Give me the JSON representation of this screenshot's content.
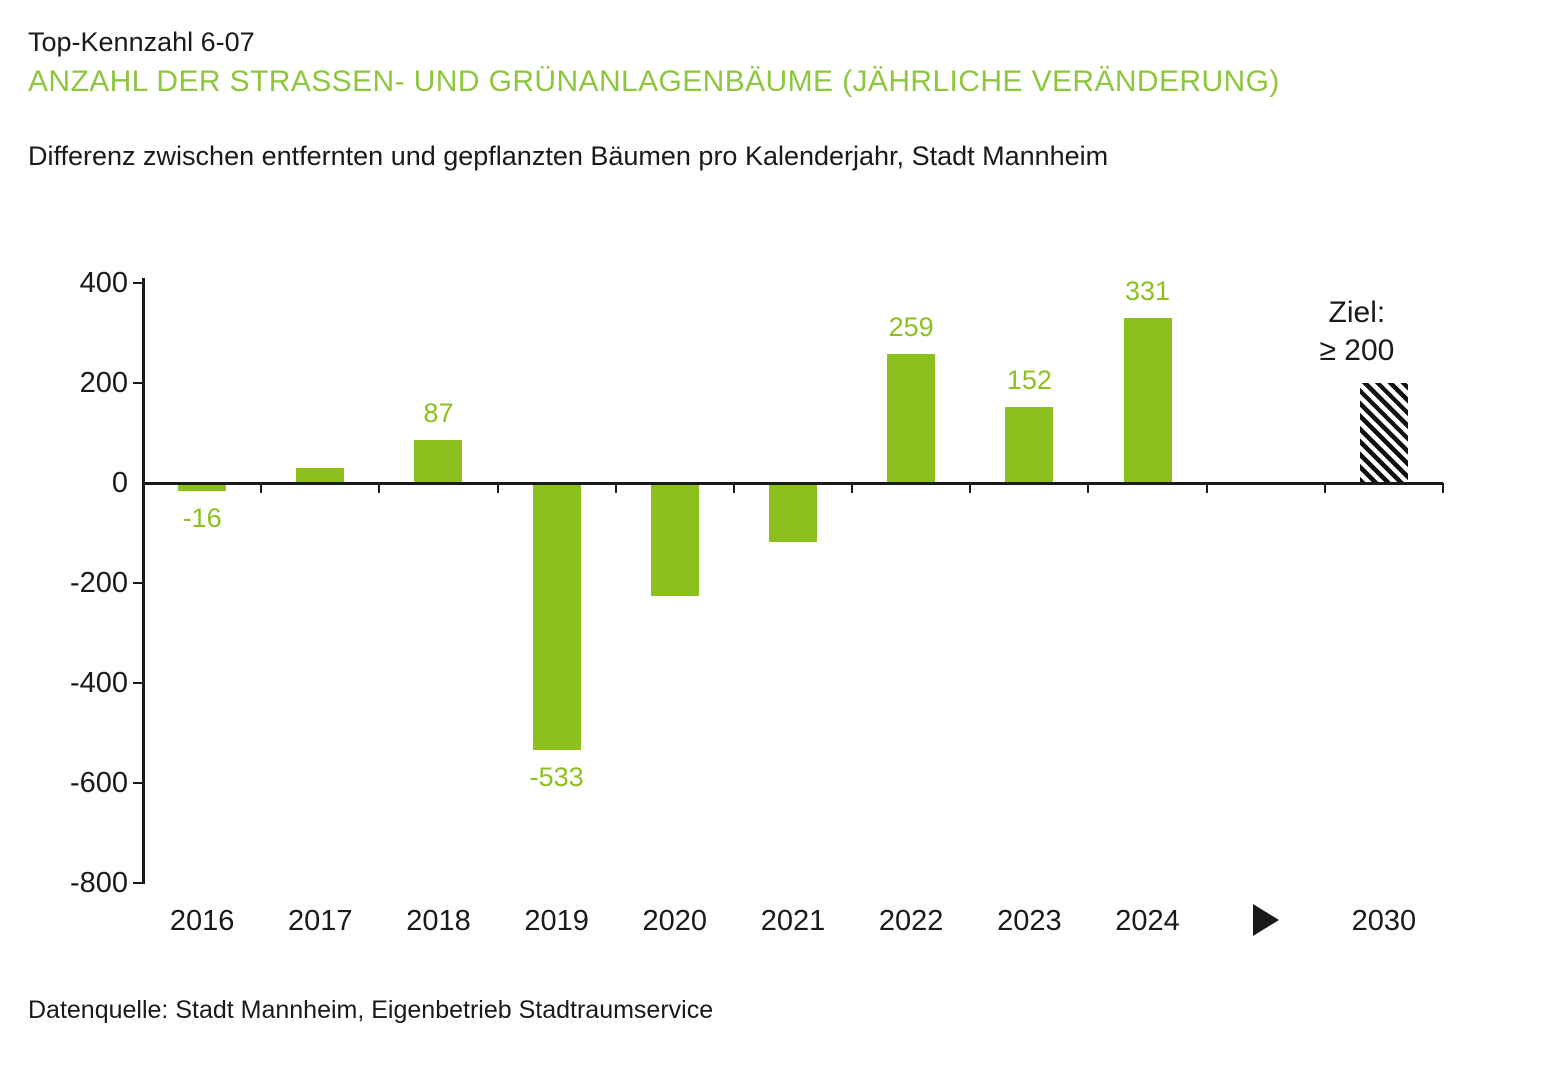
{
  "header": {
    "kicker": "Top-Kennzahl 6-07",
    "title": "ANZAHL DER STRASSEN- UND GRÜNANLAGENBÄUME (JÄHRLICHE VERÄNDERUNG)",
    "subtitle": "Differenz zwischen entfernten und gepflanzten Bäumen pro Kalenderjahr, Stadt Mannheim"
  },
  "footer": {
    "source": "Datenquelle: Stadt Mannheim, Eigenbetrieb Stadtraumservice"
  },
  "colors": {
    "bar_green": "#8cc11d",
    "title_green": "#8ec63e",
    "ink": "#1a1a1a",
    "hatch_black": "#111111"
  },
  "chart_data": {
    "type": "bar",
    "title": "Anzahl der Strassen- und Grünanlagenbäume (jährliche Veränderung)",
    "xlabel": "",
    "ylabel": "",
    "ylim": [
      -800,
      400
    ],
    "y_ticks": [
      400,
      200,
      0,
      -200,
      -400,
      -600,
      -800
    ],
    "grid": false,
    "legend": "none",
    "bars": [
      {
        "category": "2016",
        "value": -16,
        "value_label": "-16"
      },
      {
        "category": "2017",
        "value": 30,
        "value_label": null
      },
      {
        "category": "2018",
        "value": 87,
        "value_label": "87"
      },
      {
        "category": "2019",
        "value": -533,
        "value_label": "-533"
      },
      {
        "category": "2020",
        "value": -226,
        "value_label": null
      },
      {
        "category": "2021",
        "value": -118,
        "value_label": null
      },
      {
        "category": "2022",
        "value": 259,
        "value_label": "259"
      },
      {
        "category": "2023",
        "value": 152,
        "value_label": "152"
      },
      {
        "category": "2024",
        "value": 331,
        "value_label": "331"
      },
      {
        "category": "",
        "value": null,
        "value_label": null,
        "marker": "arrow-right"
      },
      {
        "category": "2030",
        "value": 200,
        "value_label": null,
        "hatched": true,
        "annotation": [
          "Ziel:",
          "≥ 200"
        ]
      }
    ]
  }
}
